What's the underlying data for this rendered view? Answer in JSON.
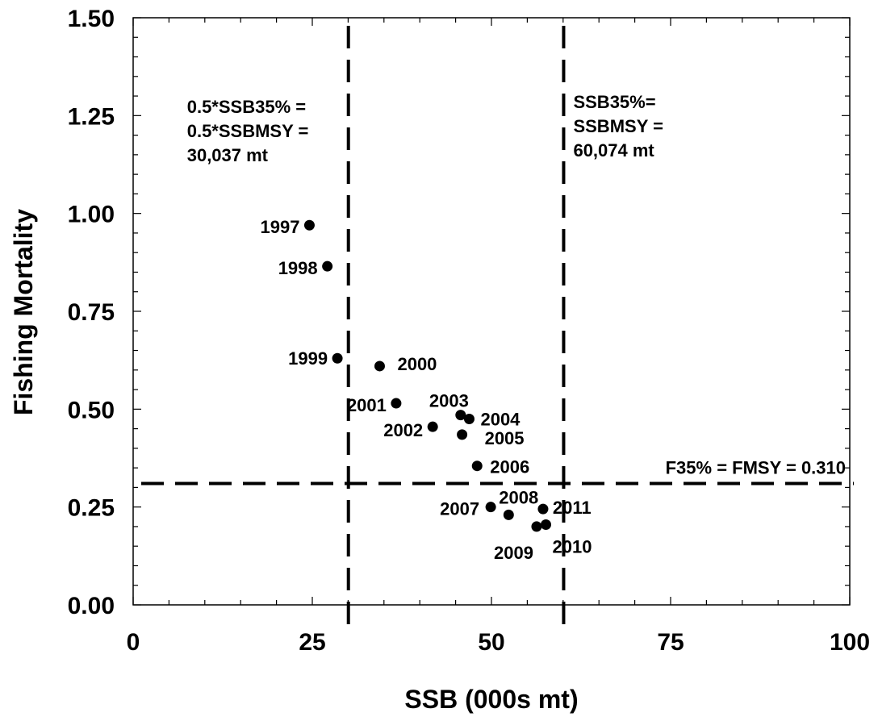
{
  "chart_data": {
    "type": "scatter",
    "title": "",
    "xlabel": "SSB (000s mt)",
    "ylabel": "Fishing Mortality",
    "xlim": [
      0,
      100
    ],
    "ylim": [
      0,
      1.5
    ],
    "x_ticks": [
      "0",
      "25",
      "50",
      "75",
      "100"
    ],
    "y_ticks": [
      "0.00",
      "0.25",
      "0.50",
      "0.75",
      "1.00",
      "1.25",
      "1.50"
    ],
    "grid": false,
    "points": [
      {
        "label": "1997",
        "x": 24.6,
        "y": 0.97
      },
      {
        "label": "1998",
        "x": 27.1,
        "y": 0.865
      },
      {
        "label": "1999",
        "x": 28.5,
        "y": 0.63
      },
      {
        "label": "2000",
        "x": 34.4,
        "y": 0.61
      },
      {
        "label": "2001",
        "x": 36.7,
        "y": 0.515
      },
      {
        "label": "2002",
        "x": 41.8,
        "y": 0.455
      },
      {
        "label": "2003",
        "x": 45.7,
        "y": 0.485
      },
      {
        "label": "2004",
        "x": 46.9,
        "y": 0.475
      },
      {
        "label": "2005",
        "x": 45.9,
        "y": 0.435
      },
      {
        "label": "2006",
        "x": 48.0,
        "y": 0.355
      },
      {
        "label": "2007",
        "x": 49.9,
        "y": 0.25
      },
      {
        "label": "2008",
        "x": 52.4,
        "y": 0.23
      },
      {
        "label": "2009",
        "x": 56.3,
        "y": 0.2
      },
      {
        "label": "2010",
        "x": 57.6,
        "y": 0.205
      },
      {
        "label": "2011",
        "x": 57.2,
        "y": 0.245
      }
    ],
    "reference_lines": [
      {
        "orientation": "vertical",
        "value": 30.037,
        "label_lines": [
          "0.5*SSB35% =",
          "0.5*SSBMSY =",
          "30,037 mt"
        ]
      },
      {
        "orientation": "vertical",
        "value": 60.074,
        "label_lines": [
          "SSB35%=",
          "SSBMSY =",
          "60,074 mt"
        ]
      },
      {
        "orientation": "horizontal",
        "value": 0.31,
        "label_lines": [
          "F35% = FMSY = 0.310"
        ]
      }
    ]
  }
}
